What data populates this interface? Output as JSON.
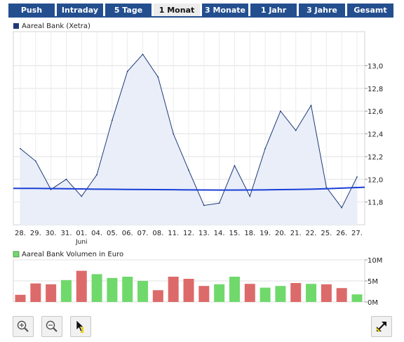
{
  "tabs": [
    "Push",
    "Intraday",
    "5 Tage",
    "1 Monat",
    "3 Monate",
    "1 Jahr",
    "3 Jahre",
    "Gesamt"
  ],
  "active_tab": "1 Monat",
  "colors": {
    "tab_bg": "#244f8f",
    "price_line": "#1f3a78",
    "price_fill": "#e9eef9",
    "avg_line": "#1b3fd6",
    "vol_up": "#70d96c",
    "vol_down": "#dd6a6a"
  },
  "chart_data": [
    {
      "type": "area",
      "legend": "Aareal Bank (Xetra)",
      "x": [
        "28.",
        "29.",
        "30.",
        "31.",
        "01.",
        "04.",
        "05.",
        "06.",
        "07.",
        "08.",
        "11.",
        "12.",
        "13.",
        "14.",
        "15.",
        "18.",
        "19.",
        "20.",
        "21.",
        "22.",
        "25.",
        "26.",
        "27."
      ],
      "x_sublabel": {
        "01.": "Juni"
      },
      "series": [
        {
          "name": "Aareal Bank (Xetra)",
          "values": [
            12.27,
            12.16,
            11.91,
            12.0,
            11.85,
            12.04,
            12.52,
            12.95,
            13.1,
            12.9,
            12.4,
            12.08,
            11.77,
            11.79,
            12.12,
            11.85,
            12.27,
            12.6,
            12.43,
            12.65,
            11.93,
            11.75,
            12.02
          ]
        },
        {
          "values": [
            11.92,
            11.92,
            11.918,
            11.917,
            11.915,
            11.913,
            11.912,
            11.911,
            11.91,
            11.909,
            11.908,
            11.907,
            11.906,
            11.905,
            11.905,
            11.906,
            11.907,
            11.909,
            11.911,
            11.913,
            11.917,
            11.922,
            11.93
          ]
        }
      ],
      "yticks": [
        "11,8",
        "12,0",
        "12,2",
        "12,4",
        "12,6",
        "12,8",
        "13,0"
      ],
      "ytick_values": [
        11.8,
        12.0,
        12.2,
        12.4,
        12.6,
        12.8,
        13.0
      ],
      "ylim": [
        11.6,
        13.3
      ],
      "grid": true
    },
    {
      "type": "bar",
      "legend": "Aareal Bank Volumen in Euro",
      "categories": [
        "28.",
        "29.",
        "30.",
        "31.",
        "01.",
        "04.",
        "05.",
        "06.",
        "07.",
        "08.",
        "11.",
        "12.",
        "13.",
        "14.",
        "15.",
        "18.",
        "19.",
        "20.",
        "21.",
        "22.",
        "25.",
        "26.",
        "27."
      ],
      "values": [
        1.7,
        4.4,
        4.2,
        5.2,
        7.4,
        6.6,
        5.7,
        6.0,
        5.0,
        2.8,
        6.0,
        5.5,
        3.8,
        4.2,
        6.0,
        4.3,
        3.4,
        3.8,
        4.5,
        4.3,
        4.2,
        3.3,
        1.8
      ],
      "direction": [
        "down",
        "down",
        "down",
        "up",
        "down",
        "up",
        "up",
        "up",
        "up",
        "down",
        "down",
        "down",
        "down",
        "up",
        "up",
        "down",
        "up",
        "up",
        "down",
        "up",
        "down",
        "down",
        "up"
      ],
      "yticks": [
        "0M",
        "5M",
        "10M"
      ],
      "ytick_values": [
        0,
        5,
        10
      ],
      "ylim": [
        0,
        10
      ],
      "grid": true
    }
  ],
  "toolbar": {
    "zoom_in": "zoom-in-icon",
    "zoom_out": "zoom-out-icon",
    "pointer": "cursor-pointer-icon",
    "fullscreen": "expand-icon"
  }
}
